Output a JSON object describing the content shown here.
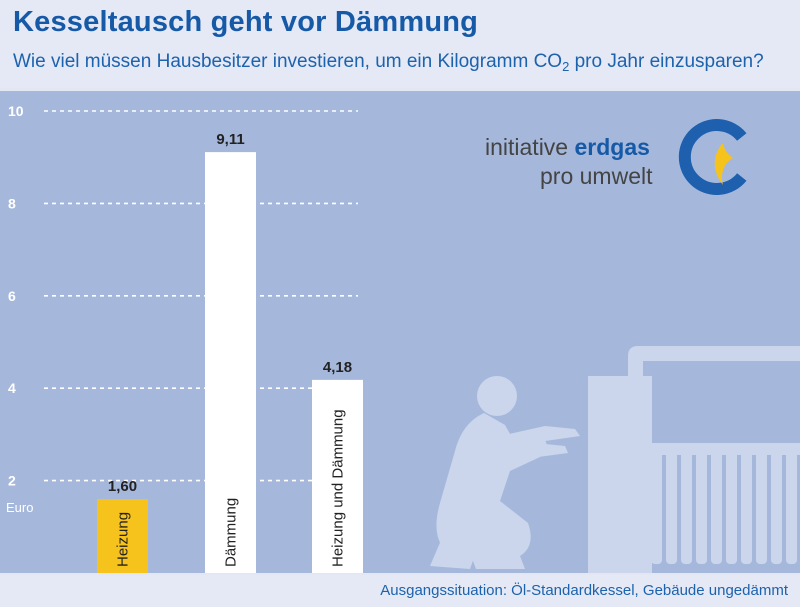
{
  "header": {
    "title": "Kesseltausch geht vor Dämmung",
    "subtitle_pre": "Wie viel müssen Hausbesitzer investieren, um ein Kilogramm CO",
    "subtitle_sub": "2",
    "subtitle_post": " pro Jahr einzusparen?"
  },
  "footer": {
    "source": "Ausgangssituation: Öl-Standardkessel, Gebäude ungedämmt"
  },
  "logo": {
    "line1": "initiative ",
    "line1_bold": "erdgas",
    "line2": "pro umwelt"
  },
  "chart_data": {
    "type": "bar",
    "title": "Kesseltausch geht vor Dämmung",
    "subtitle": "Wie viel müssen Hausbesitzer investieren, um ein Kilogramm CO2 pro Jahr einzusparen?",
    "categories": [
      "Heizung",
      "Dämmung",
      "Heizung und Dämmung"
    ],
    "values": [
      1.6,
      9.11,
      4.18
    ],
    "value_labels": [
      "1,60",
      "9,11",
      "4,18"
    ],
    "ylabel": "Euro",
    "yticks": [
      2,
      4,
      6,
      8,
      10
    ],
    "ylim": [
      0,
      10
    ],
    "grid": true,
    "colors": [
      "#f6c21c",
      "#ffffff",
      "#ffffff"
    ]
  }
}
